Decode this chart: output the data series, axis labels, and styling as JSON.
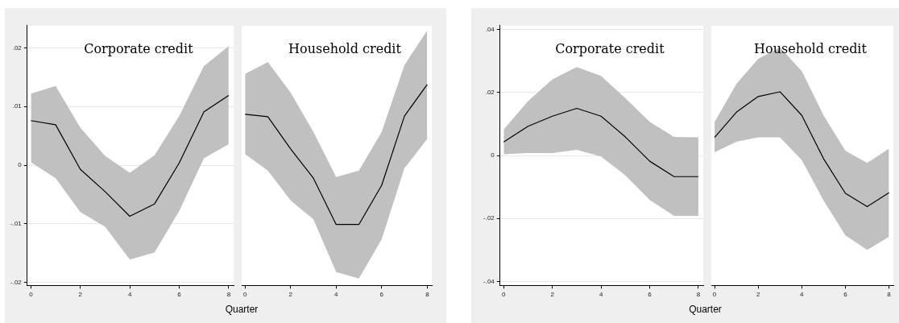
{
  "chart_data": [
    {
      "type": "line",
      "title": "Corporate credit",
      "xlabel": "Quarter",
      "x": [
        0,
        1,
        2,
        3,
        4,
        5,
        6,
        7,
        8
      ],
      "xlim": [
        -0.15,
        8.2
      ],
      "xticks": [
        0,
        2,
        4,
        6,
        8
      ],
      "ylim": [
        -0.0205,
        0.0238
      ],
      "yticks": [
        {
          "value": -0.02,
          "label": "-.02"
        },
        {
          "value": -0.01,
          "label": "-.01"
        },
        0,
        {
          "value": 0.01,
          "label": ".01"
        },
        {
          "value": 0.02,
          "label": ".02"
        }
      ],
      "grid": "y",
      "legend": false,
      "series": [
        {
          "color": "#000000",
          "values": [
            0.0076,
            0.0069,
            -0.0007,
            -0.0045,
            -0.0087,
            -0.0066,
            0.0004,
            0.0091,
            0.0119
          ],
          "lower": [
            0.0005,
            -0.0022,
            -0.008,
            -0.0105,
            -0.0161,
            -0.0149,
            -0.0078,
            0.0012,
            0.0036
          ],
          "upper": [
            0.0122,
            0.0135,
            0.0064,
            0.0016,
            -0.0013,
            0.0017,
            0.0084,
            0.0169,
            0.0203
          ]
        }
      ]
    },
    {
      "type": "line",
      "title": "Household credit",
      "x": [
        0,
        1,
        2,
        3,
        4,
        5,
        6,
        7,
        8
      ],
      "xlim": [
        -0.15,
        8.2
      ],
      "xticks": [
        0,
        2,
        4,
        6,
        8
      ],
      "ylim": [
        -0.0205,
        0.0238
      ],
      "yticks": [
        {
          "value": -0.02,
          "label": null
        },
        {
          "value": -0.01,
          "label": null
        },
        {
          "value": 0,
          "label": null
        },
        {
          "value": 0.01,
          "label": null
        },
        {
          "value": 0.02,
          "label": null
        }
      ],
      "grid": "y",
      "legend": false,
      "tick_labels": "x",
      "series": [
        {
          "color": "#000000",
          "values": [
            0.0087,
            0.0083,
            0.0028,
            -0.0022,
            -0.0101,
            -0.0101,
            -0.0034,
            0.0084,
            0.0138
          ],
          "lower": [
            0.0019,
            -0.0009,
            -0.006,
            -0.0092,
            -0.0182,
            -0.0193,
            -0.0126,
            -0.0005,
            0.0045
          ],
          "upper": [
            0.0156,
            0.0176,
            0.0124,
            0.0057,
            -0.002,
            -0.0009,
            0.0057,
            0.0171,
            0.023
          ]
        }
      ]
    },
    {
      "type": "line",
      "title": "Corporate credit",
      "xlabel": "Quarter",
      "x": [
        0,
        1,
        2,
        3,
        4,
        5,
        6,
        7,
        8
      ],
      "xlim": [
        -0.15,
        8.2
      ],
      "xticks": [
        0,
        2,
        4,
        6,
        8
      ],
      "ylim": [
        -0.0413,
        0.0413
      ],
      "yticks": [
        {
          "value": -0.04,
          "label": "-.04"
        },
        {
          "value": -0.02,
          "label": "-.02"
        },
        0,
        {
          "value": 0.02,
          "label": ".02"
        },
        {
          "value": 0.04,
          "label": ".04"
        }
      ],
      "grid": "y",
      "legend": false,
      "series": [
        {
          "color": "#000000",
          "values": [
            0.0043,
            0.0093,
            0.0125,
            0.015,
            0.0125,
            0.0059,
            -0.0018,
            -0.0067,
            -0.0067
          ],
          "lower": [
            0.0004,
            0.0008,
            0.0008,
            0.0018,
            -0.0003,
            -0.0063,
            -0.0141,
            -0.0192,
            -0.0192
          ],
          "upper": [
            0.0083,
            0.0173,
            0.0242,
            0.0281,
            0.0253,
            0.0182,
            0.0107,
            0.0059,
            0.0058
          ]
        }
      ]
    },
    {
      "type": "line",
      "title": "Household credit",
      "x": [
        0,
        1,
        2,
        3,
        4,
        5,
        6,
        7,
        8
      ],
      "xlim": [
        -0.15,
        8.2
      ],
      "xticks": [
        0,
        2,
        4,
        6,
        8
      ],
      "ylim": [
        -0.0413,
        0.0413
      ],
      "yticks": [
        {
          "value": -0.04,
          "label": null
        },
        {
          "value": -0.02,
          "label": null
        },
        {
          "value": 0,
          "label": null
        },
        {
          "value": 0.02,
          "label": null
        },
        {
          "value": 0.04,
          "label": null
        }
      ],
      "grid": "y",
      "legend": false,
      "tick_labels": "x",
      "series": [
        {
          "color": "#000000",
          "values": [
            0.0058,
            0.0138,
            0.0188,
            0.0203,
            0.0128,
            -0.001,
            -0.012,
            -0.0162,
            -0.0118
          ],
          "lower": [
            0.0011,
            0.0044,
            0.0058,
            0.0058,
            -0.0014,
            -0.0143,
            -0.0254,
            -0.03,
            -0.0258
          ],
          "upper": [
            0.0107,
            0.0228,
            0.0308,
            0.0344,
            0.0269,
            0.0128,
            0.0015,
            -0.0023,
            0.0022
          ]
        }
      ]
    }
  ]
}
